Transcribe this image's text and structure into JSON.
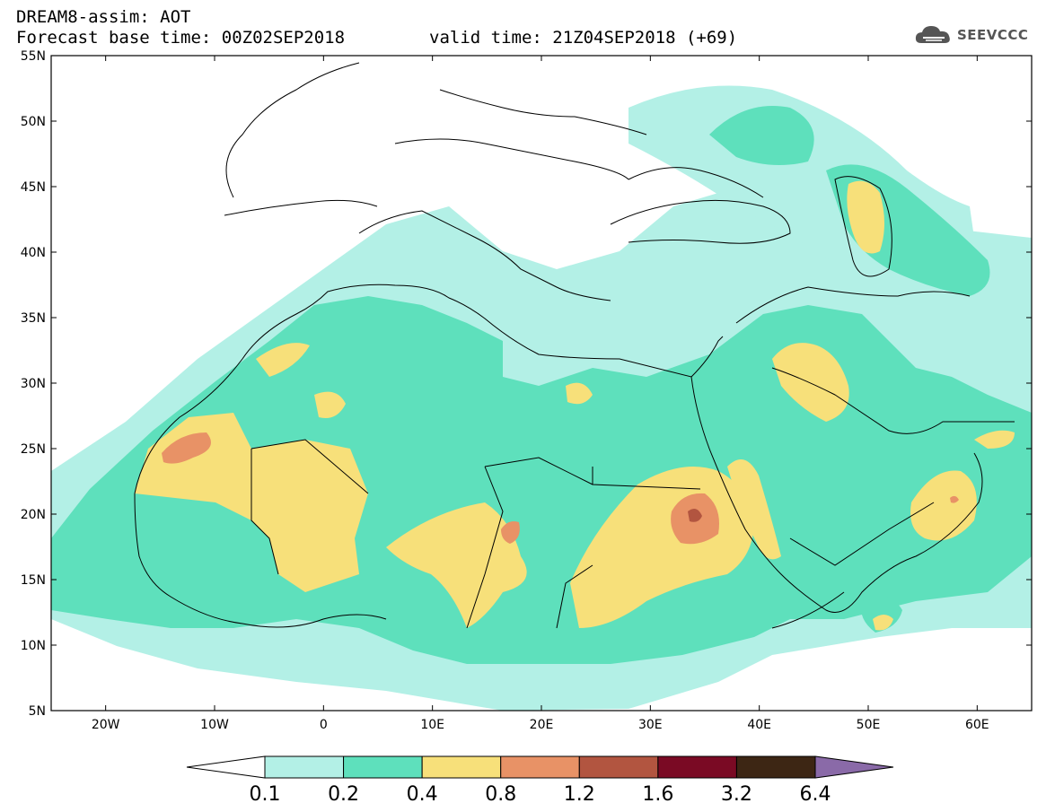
{
  "header": {
    "title": "DREAM8-assim: AOT",
    "base_time": "Forecast base time: 00Z02SEP2018",
    "valid_time": "valid time: 21Z04SEP2018 (+69)"
  },
  "logo": {
    "text": "SEEVCCC",
    "icon": "cloud-icon"
  },
  "map": {
    "lon_range": [
      -25,
      65
    ],
    "lat_range": [
      5,
      55
    ],
    "lat_ticks": [
      {
        "value": 55,
        "label": "55N"
      },
      {
        "value": 50,
        "label": "50N"
      },
      {
        "value": 45,
        "label": "45N"
      },
      {
        "value": 40,
        "label": "40N"
      },
      {
        "value": 35,
        "label": "35N"
      },
      {
        "value": 30,
        "label": "30N"
      },
      {
        "value": 25,
        "label": "25N"
      },
      {
        "value": 20,
        "label": "20N"
      },
      {
        "value": 15,
        "label": "15N"
      },
      {
        "value": 10,
        "label": "10N"
      },
      {
        "value": 5,
        "label": "5N"
      }
    ],
    "lon_ticks": [
      {
        "value": -20,
        "label": "20W"
      },
      {
        "value": -10,
        "label": "10W"
      },
      {
        "value": 0,
        "label": "0"
      },
      {
        "value": 10,
        "label": "10E"
      },
      {
        "value": 20,
        "label": "20E"
      },
      {
        "value": 30,
        "label": "30E"
      },
      {
        "value": 40,
        "label": "40E"
      },
      {
        "value": 50,
        "label": "50E"
      },
      {
        "value": 60,
        "label": "60E"
      }
    ],
    "colors": {
      "c01": "#b3f0e6",
      "c02": "#5ee0bc",
      "c04": "#f7e07a",
      "c08": "#e89266",
      "c12": "#b25540",
      "c16": "#7a0a24",
      "c32": "#3d2614",
      "c64": "#8a6aa8"
    }
  },
  "legend": {
    "labels": [
      "0.1",
      "0.2",
      "0.4",
      "0.8",
      "1.2",
      "1.6",
      "3.2",
      "6.4"
    ],
    "colors": [
      "#ffffff",
      "#b3f0e6",
      "#5ee0bc",
      "#f7e07a",
      "#e89266",
      "#b25540",
      "#7a0a24",
      "#3d2614",
      "#8a6aa8"
    ]
  }
}
